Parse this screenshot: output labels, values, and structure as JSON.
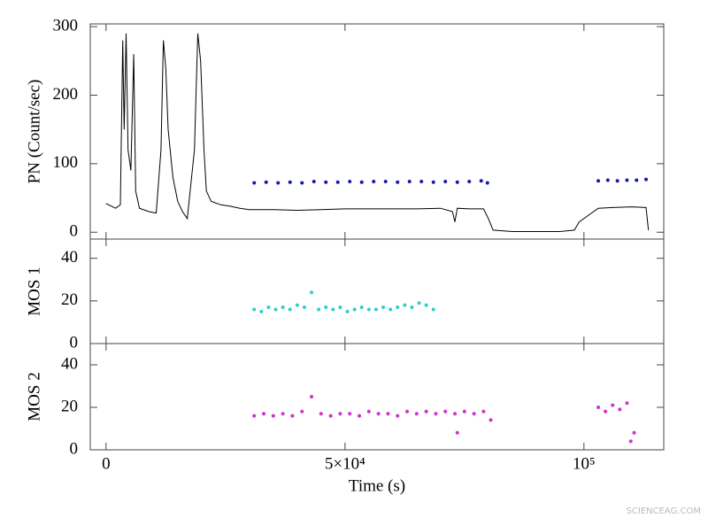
{
  "chart_data": [
    {
      "type": "line",
      "ylabel": "PN (Count/sec)",
      "xlim": [
        -3300,
        116700
      ],
      "ylim": [
        -10,
        304
      ],
      "yticks": [
        0,
        100,
        200,
        300
      ],
      "series": [
        {
          "kind": "line",
          "color": "#000000",
          "x": [
            0,
            2000,
            3000,
            3500,
            3800,
            4200,
            4600,
            5200,
            5800,
            6200,
            7000,
            9000,
            10500,
            11500,
            12000,
            12500,
            13000,
            14000,
            15000,
            16000,
            17000,
            18500,
            19200,
            19800,
            20500,
            21000,
            22000,
            24000,
            26000,
            28000,
            30000,
            35000,
            40000,
            45000,
            50000,
            55000,
            60000,
            65000,
            70000,
            72500,
            73000,
            73500,
            76000,
            79000,
            80000,
            81000,
            85000,
            90000,
            95000,
            98000,
            99000,
            101000,
            103000,
            106000,
            110000,
            113000,
            113500
          ],
          "values": [
            42,
            35,
            40,
            280,
            150,
            290,
            120,
            90,
            260,
            60,
            35,
            30,
            28,
            120,
            280,
            240,
            150,
            80,
            45,
            30,
            20,
            120,
            290,
            250,
            120,
            60,
            45,
            40,
            38,
            35,
            33,
            33,
            32,
            33,
            34,
            34,
            34,
            34,
            35,
            30,
            15,
            35,
            34,
            34,
            20,
            3,
            1,
            1,
            1,
            3,
            15,
            25,
            35,
            36,
            37,
            36,
            3
          ]
        },
        {
          "kind": "points",
          "color": "#1a1aa6",
          "x": [
            31000,
            33500,
            36000,
            38500,
            41000,
            43500,
            46000,
            48500,
            51000,
            53500,
            56000,
            58500,
            61000,
            63500,
            66000,
            68500,
            71000,
            73500,
            76000,
            78500,
            79800,
            103000,
            105000,
            107000,
            109000,
            111000,
            113000
          ],
          "values": [
            72,
            73,
            72,
            73,
            72,
            74,
            73,
            73,
            74,
            73,
            74,
            74,
            73,
            74,
            74,
            73,
            74,
            73,
            74,
            75,
            72,
            75,
            76,
            75,
            76,
            76,
            77
          ]
        }
      ]
    },
    {
      "type": "scatter",
      "ylabel": "MOS 1",
      "xlim": [
        -3300,
        116700
      ],
      "ylim": [
        0,
        49
      ],
      "yticks": [
        0,
        20,
        40
      ],
      "series": [
        {
          "kind": "points",
          "color": "#33cccc",
          "x": [
            31000,
            32500,
            34000,
            35500,
            37000,
            38500,
            40000,
            41500,
            43000,
            44500,
            46000,
            47500,
            49000,
            50500,
            52000,
            53500,
            55000,
            56500,
            58000,
            59500,
            61000,
            62500,
            64000,
            65500,
            67000,
            68500
          ],
          "values": [
            16,
            15,
            17,
            16,
            17,
            16,
            18,
            17,
            24,
            16,
            17,
            16,
            17,
            15,
            16,
            17,
            16,
            16,
            17,
            16,
            17,
            18,
            17,
            19,
            18,
            16
          ]
        }
      ]
    },
    {
      "type": "scatter",
      "ylabel": "MOS 2",
      "xlabel": "Time (s)",
      "xlim": [
        -3300,
        116700
      ],
      "ylim": [
        0,
        50
      ],
      "yticks": [
        0,
        20,
        40
      ],
      "xticks": [
        {
          "value": 0,
          "label": "0"
        },
        {
          "value": 50000,
          "label": "5×10⁴"
        },
        {
          "value": 100000,
          "label": "10⁵"
        }
      ],
      "series": [
        {
          "kind": "points",
          "color": "#cc33cc",
          "x": [
            31000,
            33000,
            35000,
            37000,
            39000,
            41000,
            43000,
            45000,
            47000,
            49000,
            51000,
            53000,
            55000,
            57000,
            59000,
            61000,
            63000,
            65000,
            67000,
            69000,
            71000,
            73000,
            73500,
            75000,
            77000,
            79000,
            80500,
            103000,
            104500,
            106000,
            107500,
            109000,
            109800,
            110500
          ],
          "values": [
            16,
            17,
            16,
            17,
            16,
            18,
            25,
            17,
            16,
            17,
            17,
            16,
            18,
            17,
            17,
            16,
            18,
            17,
            18,
            17,
            18,
            17,
            8,
            18,
            17,
            18,
            14,
            20,
            18,
            21,
            19,
            22,
            4,
            8
          ]
        }
      ]
    }
  ],
  "watermark": "SCIENCEAG.COM"
}
